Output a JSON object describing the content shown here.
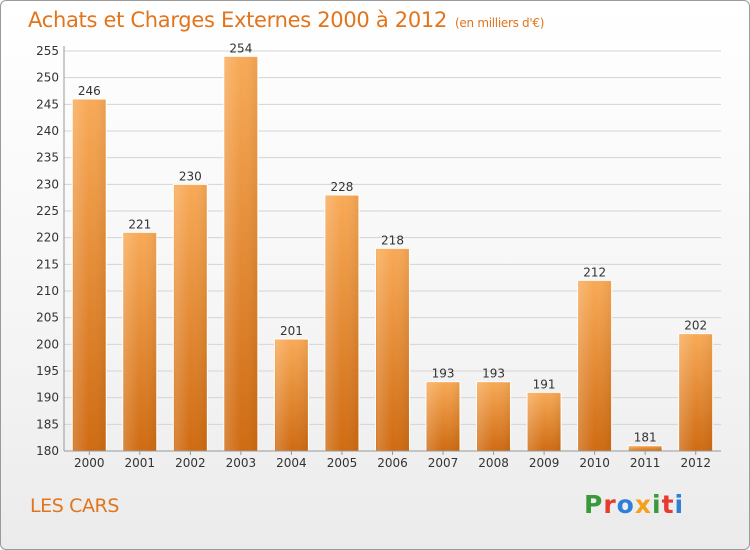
{
  "header": {
    "title": "Achats et Charges Externes 2000 à 2012",
    "unit": "(en milliers d'€)"
  },
  "footer": {
    "place": "LES CARS",
    "brand": "Proxiti",
    "brand_letters": [
      "P",
      "r",
      "o",
      "x",
      "i",
      "t",
      "i"
    ],
    "brand_colors": [
      "#3a9a3a",
      "#e63b2e",
      "#2e7fd6",
      "#f2a11c",
      "#3a9a3a",
      "#e63b2e",
      "#2e7fd6"
    ]
  },
  "colors": {
    "bar_light": "#f6a653",
    "bar_dark": "#d06f16",
    "text": "#333333",
    "accent": "#e2741c"
  },
  "chart_data": {
    "type": "bar",
    "title": "Achats et Charges Externes 2000 à 2012",
    "subtitle": "(en milliers d'€)",
    "categories": [
      "2000",
      "2001",
      "2002",
      "2003",
      "2004",
      "2005",
      "2006",
      "2007",
      "2008",
      "2009",
      "2010",
      "2011",
      "2012"
    ],
    "values": [
      246,
      221,
      230,
      254,
      201,
      228,
      218,
      193,
      193,
      191,
      212,
      181,
      202
    ],
    "ylim": [
      180,
      255
    ],
    "yticks": [
      180,
      185,
      190,
      195,
      200,
      205,
      210,
      215,
      220,
      225,
      230,
      235,
      240,
      245,
      250,
      255
    ],
    "grid": true,
    "legend": "none"
  }
}
